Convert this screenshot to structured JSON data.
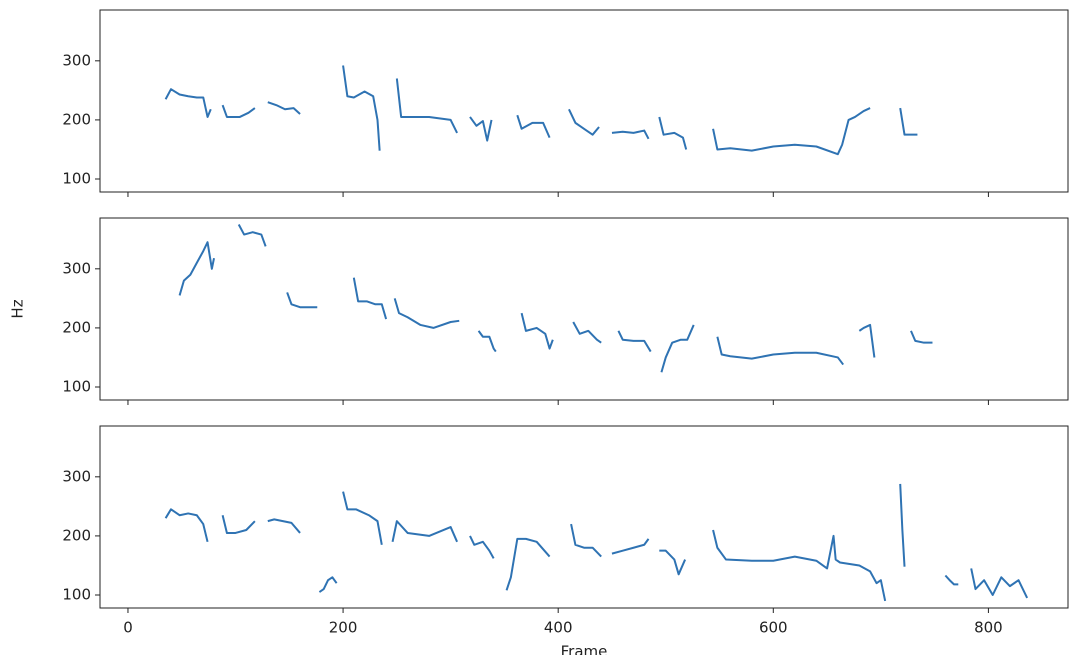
{
  "chart_data": [
    {
      "type": "line",
      "color": "#2f73b3",
      "xlim": [
        -26,
        874
      ],
      "ylim": [
        78,
        386
      ],
      "xticks": [
        0,
        200,
        400,
        600,
        800
      ],
      "yticks": [
        100,
        200,
        300
      ],
      "x": [
        35,
        40,
        48,
        56,
        64,
        70,
        74,
        77,
        82,
        88,
        92,
        96,
        104,
        112,
        118,
        124,
        130,
        138,
        146,
        154,
        160,
        180,
        200,
        204,
        210,
        220,
        228,
        232,
        234,
        242,
        250,
        254,
        262,
        280,
        300,
        306,
        312,
        318,
        324,
        330,
        334,
        338,
        350,
        362,
        366,
        376,
        386,
        392,
        403,
        410,
        416,
        424,
        432,
        438,
        446,
        450,
        460,
        470,
        480,
        484,
        490,
        494,
        498,
        508,
        516,
        519,
        533,
        544,
        548,
        560,
        580,
        600,
        620,
        640,
        660,
        664,
        670,
        676,
        684,
        690,
        700,
        718,
        722,
        728,
        734
      ],
      "values": [
        235,
        252,
        243,
        240,
        238,
        238,
        205,
        218,
        null,
        225,
        205,
        205,
        205,
        212,
        220,
        null,
        230,
        225,
        218,
        220,
        210,
        null,
        292,
        240,
        238,
        248,
        240,
        200,
        148,
        null,
        270,
        205,
        205,
        205,
        200,
        178,
        null,
        205,
        190,
        198,
        165,
        200,
        null,
        208,
        185,
        195,
        195,
        170,
        null,
        218,
        195,
        185,
        175,
        188,
        null,
        178,
        180,
        178,
        182,
        168,
        null,
        205,
        175,
        178,
        170,
        150,
        null,
        185,
        150,
        152,
        148,
        155,
        158,
        155,
        142,
        158,
        200,
        205,
        215,
        220,
        null,
        220,
        175,
        175,
        175
      ]
    },
    {
      "type": "line",
      "color": "#2f73b3",
      "ylabel": "Hz",
      "xlim": [
        -26,
        874
      ],
      "ylim": [
        78,
        386
      ],
      "xticks": [
        0,
        200,
        400,
        600,
        800
      ],
      "yticks": [
        100,
        200,
        300
      ],
      "x": [
        48,
        52,
        58,
        64,
        70,
        74,
        78,
        80,
        90,
        103,
        108,
        116,
        124,
        128,
        140,
        148,
        152,
        160,
        170,
        176,
        190,
        210,
        214,
        222,
        230,
        236,
        240,
        244,
        248,
        252,
        260,
        272,
        284,
        300,
        308,
        316,
        326,
        330,
        336,
        340,
        342,
        350,
        366,
        370,
        380,
        388,
        392,
        395,
        404,
        414,
        420,
        428,
        436,
        440,
        448,
        456,
        460,
        470,
        480,
        486,
        492,
        496,
        500,
        506,
        514,
        520,
        526,
        536,
        548,
        552,
        560,
        580,
        600,
        620,
        640,
        660,
        665,
        673,
        680,
        684,
        690,
        694,
        704,
        728,
        732,
        740,
        748
      ],
      "values": [
        255,
        280,
        290,
        310,
        330,
        345,
        300,
        318,
        null,
        375,
        358,
        362,
        358,
        338,
        null,
        260,
        240,
        235,
        235,
        235,
        null,
        285,
        245,
        245,
        240,
        240,
        215,
        null,
        250,
        225,
        218,
        205,
        200,
        210,
        212,
        null,
        195,
        185,
        185,
        165,
        160,
        null,
        225,
        195,
        200,
        190,
        165,
        180,
        null,
        210,
        190,
        195,
        180,
        175,
        null,
        195,
        180,
        178,
        178,
        160,
        null,
        125,
        150,
        175,
        180,
        180,
        205,
        null,
        185,
        155,
        152,
        148,
        155,
        158,
        158,
        150,
        138,
        null,
        195,
        200,
        205,
        150,
        null,
        195,
        178,
        175,
        175
      ]
    },
    {
      "type": "line",
      "color": "#2f73b3",
      "xlabel": "Frame",
      "xlim": [
        -26,
        874
      ],
      "ylim": [
        78,
        386
      ],
      "xticks": [
        0,
        200,
        400,
        600,
        800
      ],
      "yticks": [
        100,
        200,
        300
      ],
      "x": [
        35,
        40,
        48,
        56,
        64,
        70,
        74,
        82,
        88,
        92,
        100,
        110,
        118,
        124,
        130,
        136,
        144,
        152,
        160,
        170,
        178,
        182,
        186,
        190,
        194,
        197,
        200,
        204,
        212,
        224,
        232,
        236,
        242,
        246,
        250,
        260,
        280,
        300,
        306,
        312,
        318,
        322,
        330,
        336,
        340,
        348,
        352,
        356,
        362,
        370,
        380,
        392,
        402,
        412,
        416,
        424,
        432,
        440,
        446,
        450,
        460,
        470,
        480,
        484,
        490,
        494,
        500,
        508,
        512,
        518,
        535,
        544,
        548,
        556,
        580,
        600,
        620,
        640,
        650,
        656,
        658,
        662,
        680,
        690,
        696,
        700,
        704,
        712,
        718,
        720,
        722,
        745,
        760,
        764,
        768,
        772,
        780,
        784,
        788,
        796,
        804,
        812,
        820,
        828,
        836
      ],
      "values": [
        230,
        245,
        235,
        238,
        235,
        220,
        190,
        null,
        235,
        205,
        205,
        210,
        225,
        null,
        225,
        228,
        225,
        222,
        205,
        null,
        105,
        110,
        125,
        130,
        120,
        null,
        275,
        245,
        245,
        235,
        225,
        185,
        null,
        190,
        225,
        205,
        200,
        215,
        190,
        null,
        200,
        185,
        190,
        175,
        162,
        null,
        108,
        130,
        195,
        195,
        190,
        165,
        null,
        220,
        185,
        180,
        180,
        165,
        null,
        170,
        175,
        180,
        185,
        195,
        null,
        175,
        175,
        160,
        135,
        160,
        null,
        210,
        180,
        160,
        158,
        158,
        165,
        158,
        145,
        200,
        160,
        155,
        150,
        140,
        120,
        125,
        90,
        null,
        288,
        210,
        148,
        null,
        133,
        125,
        118,
        118,
        null,
        145,
        110,
        125,
        100,
        130,
        115,
        125,
        95
      ]
    }
  ]
}
